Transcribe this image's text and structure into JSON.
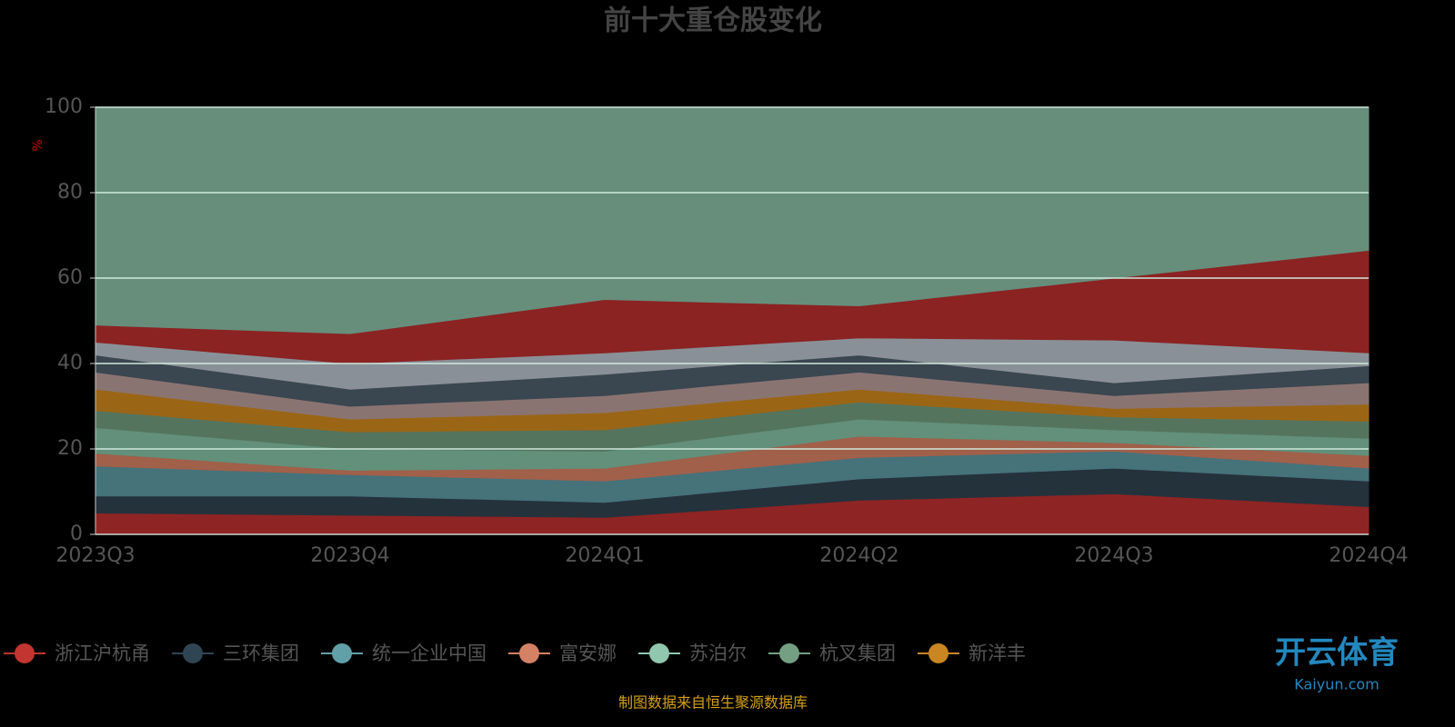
{
  "chart_data": {
    "type": "stacked-area",
    "title": "前十大重仓股变化",
    "y_unit": "%",
    "categories": [
      "2023Q3",
      "2023Q4",
      "2024Q1",
      "2024Q2",
      "2024Q3",
      "2024Q4"
    ],
    "ylim": [
      0,
      100
    ],
    "yticks": [
      0,
      20,
      40,
      60,
      80,
      100
    ],
    "grid": true,
    "series": [
      {
        "name": "浙江沪杭甬",
        "color": "#c23531",
        "fill": "#8f2424",
        "values": [
          5,
          4.5,
          4,
          8,
          9.5,
          6.5
        ]
      },
      {
        "name": "三环集团",
        "color": "#2f4554",
        "fill": "#24323c",
        "values": [
          4,
          4.5,
          3.5,
          5,
          6,
          6
        ]
      },
      {
        "name": "统一企业中国",
        "color": "#61a0a8",
        "fill": "#46727a",
        "values": [
          7,
          5,
          5,
          5,
          4,
          3
        ]
      },
      {
        "name": "富安娜",
        "color": "#d48265",
        "fill": "#a0604a",
        "values": [
          3,
          1,
          3,
          5,
          2,
          3
        ]
      },
      {
        "name": "苏泊尔",
        "color": "#91c7ae",
        "fill": "#62907a",
        "values": [
          6,
          5,
          4,
          4,
          3,
          4
        ]
      },
      {
        "name": "杭叉集团",
        "color": "#749f83",
        "fill": "#55745e",
        "values": [
          4,
          4,
          5,
          4,
          3,
          4
        ]
      },
      {
        "name": "新洋丰",
        "color": "#ca8622",
        "fill": "#9a6616",
        "values": [
          5,
          3,
          4,
          3,
          2,
          4
        ]
      },
      {
        "color": "#bda29a",
        "fill": "#8a7472",
        "values": [
          4,
          3,
          4,
          4,
          3,
          5
        ]
      },
      {
        "color": "#2f4554",
        "fill": "#3a4650",
        "values": [
          4,
          4,
          5,
          4,
          3,
          4
        ]
      },
      {
        "color": "#a0a7b0",
        "fill": "#8a9097",
        "values": [
          3,
          6,
          5,
          4,
          10,
          3
        ]
      },
      {
        "color": "#c23531",
        "fill": "#8b2323",
        "values": [
          4,
          7,
          12.5,
          7.5,
          14.5,
          24
        ]
      },
      {
        "color": "#91c7ae",
        "fill": "#668e7b",
        "values": [
          51,
          53,
          45,
          46.5,
          40,
          33.5
        ]
      }
    ],
    "source": "制图数据来自恒生聚源数据库",
    "watermark": [
      "开云体育",
      "Kaiyun.com"
    ]
  }
}
